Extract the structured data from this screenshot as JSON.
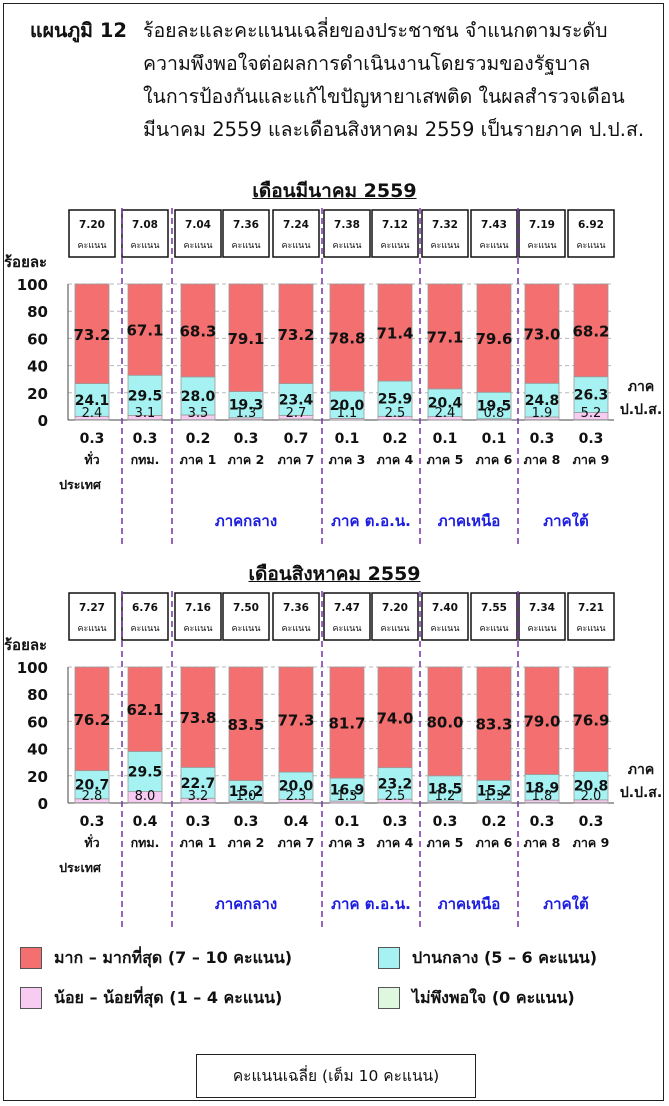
{
  "figure_label": "แผนภูมิ 12",
  "figure_title": [
    "ร้อยละและคะแนนเฉลี่ยของประชาชน  จำแนกตามระดับ",
    "ความพึงพอใจต่อผลการดำเนินงานโดยรวมของรัฐบาล",
    "ในการป้องกันและแก้ไขปัญหายาเสพติด ในผลสำรวจเดือน",
    "มีนาคม 2559 และเดือนสิงหาคม 2559  เป็นรายภาค ป.ป.ส."
  ],
  "chart_data": [
    {
      "type": "bar",
      "stacked": true,
      "title": "เดือนมีนาคม 2559",
      "ylabel": "ร้อยละ",
      "xlabel": [
        "ภาค",
        "ป.ป.ส."
      ],
      "ylim": [
        0,
        100
      ],
      "yticks": [
        "0",
        "20",
        "40",
        "60",
        "80",
        "100"
      ],
      "grid": true,
      "score_label": "คะแนน",
      "categories": [
        [
          "ทั่ว",
          "ประเทศ"
        ],
        [
          "กทม."
        ],
        [
          "ภาค 1"
        ],
        [
          "ภาค 2"
        ],
        [
          "ภาค 7"
        ],
        [
          "ภาค 3"
        ],
        [
          "ภาค 4"
        ],
        [
          "ภาค 5"
        ],
        [
          "ภาค 6"
        ],
        [
          "ภาค 8"
        ],
        [
          "ภาค 9"
        ]
      ],
      "region_groups": [
        "ภาคกลาง",
        "ภาค ต.อ.น.",
        "ภาคเหนือ",
        "ภาคใต้"
      ],
      "scores": [
        "7.20",
        "7.08",
        "7.04",
        "7.36",
        "7.24",
        "7.38",
        "7.12",
        "7.32",
        "7.43",
        "7.19",
        "6.92"
      ],
      "series": [
        {
          "name": "ไม่พึงพอใจ (0 คะแนน)",
          "values": [
            0.3,
            0.3,
            0.2,
            0.3,
            0.7,
            0.1,
            0.2,
            0.1,
            0.1,
            0.3,
            0.3
          ],
          "labels": [
            "0.3",
            "0.3",
            "0.2",
            "0.3",
            "0.7",
            "0.1",
            "0.2",
            "0.1",
            "0.1",
            "0.3",
            "0.3"
          ]
        },
        {
          "name": "น้อย – น้อยที่สุด (1 – 4 คะแนน)",
          "values": [
            2.4,
            3.1,
            3.5,
            1.3,
            2.7,
            1.1,
            2.5,
            2.4,
            0.8,
            1.9,
            5.2
          ],
          "labels": [
            "2.4",
            "3.1",
            "3.5",
            "1.3",
            "2.7",
            "1.1",
            "2.5",
            "2.4",
            "0.8",
            "1.9",
            "5.2"
          ]
        },
        {
          "name": "ปานกลาง (5 – 6 คะแนน)",
          "values": [
            24.1,
            29.5,
            28.0,
            19.3,
            23.4,
            20.0,
            25.9,
            20.4,
            19.5,
            24.8,
            26.3
          ],
          "labels": [
            "24.1",
            "29.5",
            "28.0",
            "19.3",
            "23.4",
            "20.0",
            "25.9",
            "20.4",
            "19.5",
            "24.8",
            "26.3"
          ]
        },
        {
          "name": "มาก – มากที่สุด (7 – 10 คะแนน)",
          "values": [
            73.2,
            67.1,
            68.3,
            79.1,
            73.2,
            78.8,
            71.4,
            77.1,
            79.6,
            73.0,
            68.2
          ],
          "labels": [
            "73.2",
            "67.1",
            "68.3",
            "79.1",
            "73.2",
            "78.8",
            "71.4",
            "77.1",
            "79.6",
            "73.0",
            "68.2"
          ]
        }
      ]
    },
    {
      "type": "bar",
      "stacked": true,
      "title": "เดือนสิงหาคม 2559",
      "ylabel": "ร้อยละ",
      "xlabel": [
        "ภาค",
        "ป.ป.ส."
      ],
      "ylim": [
        0,
        100
      ],
      "yticks": [
        "0",
        "20",
        "40",
        "60",
        "80",
        "100"
      ],
      "grid": true,
      "score_label": "คะแนน",
      "categories": [
        [
          "ทั่ว",
          "ประเทศ"
        ],
        [
          "กทม."
        ],
        [
          "ภาค 1"
        ],
        [
          "ภาค 2"
        ],
        [
          "ภาค 7"
        ],
        [
          "ภาค 3"
        ],
        [
          "ภาค 4"
        ],
        [
          "ภาค 5"
        ],
        [
          "ภาค 6"
        ],
        [
          "ภาค 8"
        ],
        [
          "ภาค 9"
        ]
      ],
      "region_groups": [
        "ภาคกลาง",
        "ภาค ต.อ.น.",
        "ภาคเหนือ",
        "ภาคใต้"
      ],
      "scores": [
        "7.27",
        "6.76",
        "7.16",
        "7.50",
        "7.36",
        "7.47",
        "7.20",
        "7.40",
        "7.55",
        "7.34",
        "7.21"
      ],
      "series": [
        {
          "name": "ไม่พึงพอใจ (0 คะแนน)",
          "values": [
            0.3,
            0.4,
            0.3,
            0.3,
            0.4,
            0.1,
            0.3,
            0.3,
            0.2,
            0.3,
            0.3
          ],
          "labels": [
            "0.3",
            "0.4",
            "0.3",
            "0.3",
            "0.4",
            "0.1",
            "0.3",
            "0.3",
            "0.2",
            "0.3",
            "0.3"
          ]
        },
        {
          "name": "น้อย – น้อยที่สุด (1 – 4 คะแนน)",
          "values": [
            2.8,
            8.0,
            3.2,
            1.0,
            2.3,
            1.3,
            2.5,
            1.2,
            1.3,
            1.8,
            2.0
          ],
          "labels": [
            "2.8",
            "8.0",
            "3.2",
            "1.0",
            "2.3",
            "1.3",
            "2.5",
            "1.2",
            "1.3",
            "1.8",
            "2.0"
          ]
        },
        {
          "name": "ปานกลาง (5 – 6 คะแนน)",
          "values": [
            20.7,
            29.5,
            22.7,
            15.2,
            20.0,
            16.9,
            23.2,
            18.5,
            15.2,
            18.9,
            20.8
          ],
          "labels": [
            "20.7",
            "29.5",
            "22.7",
            "15.2",
            "20.0",
            "16.9",
            "23.2",
            "18.5",
            "15.2",
            "18.9",
            "20.8"
          ]
        },
        {
          "name": "มาก – มากที่สุด (7 – 10 คะแนน)",
          "values": [
            76.2,
            62.1,
            73.8,
            83.5,
            77.3,
            81.7,
            74.0,
            80.0,
            83.3,
            79.0,
            76.9
          ],
          "labels": [
            "76.2",
            "62.1",
            "73.8",
            "83.5",
            "77.3",
            "81.7",
            "74.0",
            "80.0",
            "83.3",
            "79.0",
            "76.9"
          ]
        }
      ]
    }
  ],
  "colors": {
    "high": "#f46f6f",
    "medium": "#a6f2f2",
    "low": "#f8ccf2",
    "none": "#dff7df",
    "divider": "#7d3fb0",
    "region_text": "#1c1ce0"
  },
  "legend": {
    "high": "มาก – มากที่สุด (7 – 10 คะแนน)",
    "medium": "ปานกลาง (5 – 6 คะแนน)",
    "low": "น้อย – น้อยที่สุด (1 – 4 คะแนน)",
    "none": "ไม่พึงพอใจ (0 คะแนน)"
  },
  "note": "คะแนนเฉลี่ย (เต็ม 10 คะแนน)"
}
